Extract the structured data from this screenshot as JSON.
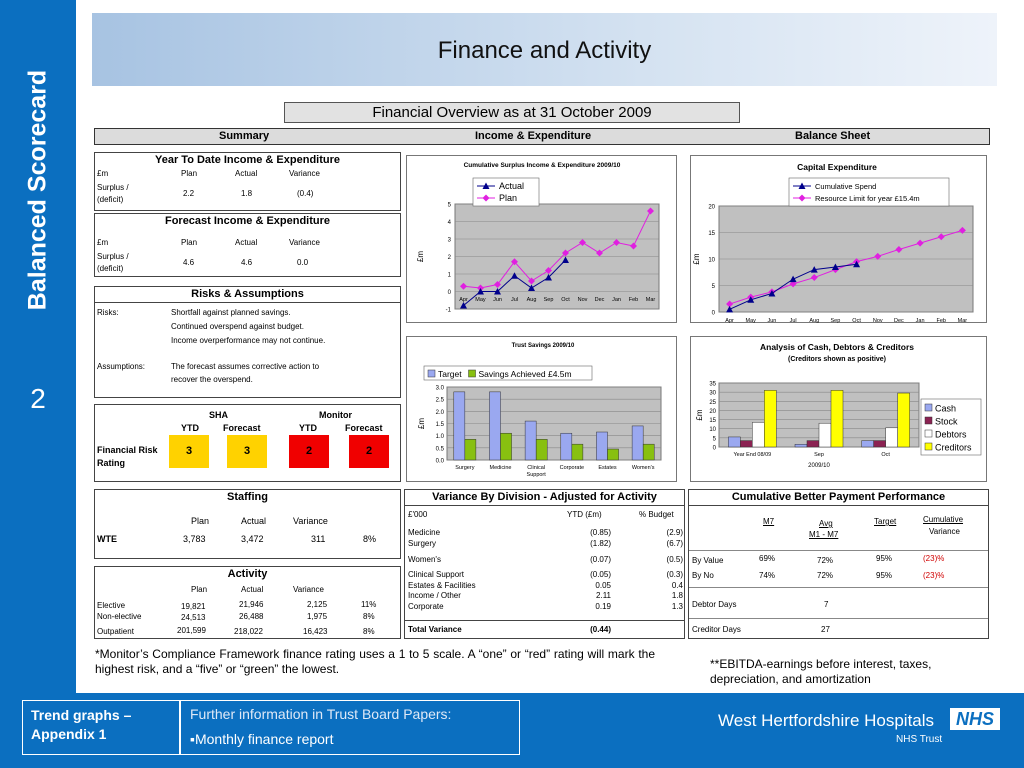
{
  "sidebar": {
    "title": "Balanced Scorecard",
    "slide_number": "2"
  },
  "header": {
    "title": "Finance and Activity",
    "subtitle": "Financial Overview as at 31 October 2009"
  },
  "sections": {
    "summary": "Summary",
    "income": "Income & Expenditure",
    "balance": "Balance Sheet"
  },
  "ytd": {
    "title": "Year To Date Income & Expenditure",
    "unit": "£m",
    "col_plan": "Plan",
    "col_actual": "Actual",
    "col_variance": "Variance",
    "row_label_1": "Surplus /",
    "row_label_2": "(deficit)",
    "plan": "2.2",
    "actual": "1.8",
    "variance": "(0.4)"
  },
  "forecast": {
    "title": "Forecast Income & Expenditure",
    "unit": "£m",
    "col_plan": "Plan",
    "col_actual": "Actual",
    "col_variance": "Variance",
    "row_label_1": "Surplus /",
    "row_label_2": "(deficit)",
    "plan": "4.6",
    "actual": "4.6",
    "variance": "0.0"
  },
  "risks": {
    "title": "Risks & Assumptions",
    "risks_label": "Risks:",
    "risk_lines": [
      "Shortfall against planned savings.",
      "Continued overspend against budget.",
      "Income overperformance may not continue."
    ],
    "assumptions_label": "Assumptions:",
    "assumption_lines": [
      "The forecast assumes corrective action to",
      "recover the overspend."
    ]
  },
  "rating": {
    "sha": "SHA",
    "monitor": "Monitor",
    "ytd": "YTD",
    "forecast": "Forecast",
    "ytd2": "YTD",
    "forecast2": "Forecast",
    "label_1": "Financial Risk",
    "label_2": "Rating",
    "sha_ytd": "3",
    "sha_forecast": "3",
    "monitor_ytd": "2",
    "monitor_forecast": "2",
    "color_amber": "#ffd200",
    "color_red": "#f00000"
  },
  "staffing": {
    "title": "Staffing",
    "col_plan": "Plan",
    "col_actual": "Actual",
    "col_variance": "Variance",
    "row": {
      "label": "WTE",
      "plan": "3,783",
      "actual": "3,472",
      "variance": "311",
      "pct": "8%"
    }
  },
  "activity": {
    "title": "Activity",
    "col_plan": "Plan",
    "col_actual": "Actual",
    "col_variance": "Variance",
    "rows": [
      {
        "label": "Elective",
        "plan": "19,821",
        "actual": "21,946",
        "variance": "2,125",
        "pct": "11%"
      },
      {
        "label": "Non-elective",
        "plan": "24,513",
        "actual": "26,488",
        "variance": "1,975",
        "pct": "8%"
      },
      {
        "label": "Outpatient",
        "plan": "201,599",
        "actual": "218,022",
        "variance": "16,423",
        "pct": "8%"
      }
    ]
  },
  "variance_division": {
    "title": "Variance By Division - Adjusted for Activity",
    "unit": "£'000",
    "col_ytd": "YTD (£m)",
    "col_budget": "% Budget",
    "rows": [
      {
        "label": "Medicine",
        "ytd": "(0.85)",
        "budget": "(2.9)"
      },
      {
        "label": "Surgery",
        "ytd": "(1.82)",
        "budget": "(6.7)"
      },
      {
        "label": "Women's",
        "ytd": "(0.07)",
        "budget": "(0.5)"
      },
      {
        "label": "Clinical Support",
        "ytd": "(0.05)",
        "budget": "(0.3)"
      },
      {
        "label": "Estates & Facilities",
        "ytd": "0.05",
        "budget": "0.4"
      },
      {
        "label": "Income / Other",
        "ytd": "2.11",
        "budget": "1.8"
      },
      {
        "label": "Corporate",
        "ytd": "0.19",
        "budget": "1.3"
      }
    ],
    "total_label": "Total  Variance",
    "total_ytd": "(0.44)"
  },
  "bpp": {
    "title": "Cumulative Better Payment Performance",
    "col_m7": "M7",
    "col_avg_1": "Avg",
    "col_avg_2": "M1 - M7",
    "col_target": "Target",
    "col_cum_1": "Cumulative",
    "col_cum_2": "Variance",
    "rows": [
      {
        "label": "By Value",
        "m7": "69%",
        "avg": "72%",
        "target": "95%",
        "variance": "(23)%"
      },
      {
        "label": "By No",
        "m7": "74%",
        "avg": "72%",
        "target": "95%",
        "variance": "(23)%"
      }
    ],
    "debtor_label": "Debtor Days",
    "debtor_value": "7",
    "creditor_label": "Creditor Days",
    "creditor_value": "27",
    "variance_color": "#d00000"
  },
  "notes": {
    "monitor": "*Monitor’s Compliance Framework finance rating uses a 1 to 5 scale. A “one” or “red” rating will mark the highest risk, and a “five” or “green” the lowest.",
    "ebitda": "**EBITDA-earnings before interest, taxes, depreciation, and amortization"
  },
  "footer": {
    "trend_1": "Trend graphs –",
    "trend_2": "Appendix 1",
    "info": "Further information in Trust Board Papers:",
    "info_item": "▪Monthly finance report",
    "org": "West Hertfordshire Hospitals",
    "logo": "NHS",
    "org_sub": "NHS Trust"
  },
  "chart_data": [
    {
      "id": "surplus",
      "type": "line",
      "title": "Cumulative Surplus Income & Expenditure 2009/10",
      "ylabel": "£m",
      "categories": [
        "Apr",
        "May",
        "Jun",
        "Jul",
        "Aug",
        "Sep",
        "Oct",
        "Nov",
        "Dec",
        "Jan",
        "Feb",
        "Mar"
      ],
      "ylim": [
        -1,
        5
      ],
      "yticks": [
        "-1",
        "0",
        "1",
        "2",
        "3",
        "4",
        "5"
      ],
      "series": [
        {
          "name": "Actual",
          "color": "#00008b",
          "marker": "triangle",
          "values": [
            -0.8,
            0.0,
            0.0,
            0.9,
            0.2,
            0.8,
            1.8,
            null,
            null,
            null,
            null,
            null
          ]
        },
        {
          "name": "Plan",
          "color": "#e020e0",
          "marker": "diamond",
          "values": [
            0.3,
            0.2,
            0.4,
            1.7,
            0.6,
            1.2,
            2.2,
            2.8,
            2.2,
            2.8,
            2.6,
            4.6
          ]
        }
      ],
      "legend": "top-left"
    },
    {
      "id": "capex",
      "type": "line",
      "title": "Capital Expenditure",
      "ylabel": "£m",
      "categories": [
        "Apr",
        "May",
        "Jun",
        "Jul",
        "Aug",
        "Sep",
        "Oct",
        "Nov",
        "Dec",
        "Jan",
        "Feb",
        "Mar"
      ],
      "ylim": [
        0,
        20
      ],
      "yticks": [
        "0",
        "5",
        "10",
        "15",
        "20"
      ],
      "series": [
        {
          "name": "Cumulative Spend",
          "color": "#00008b",
          "marker": "triangle",
          "values": [
            0.5,
            2.3,
            3.5,
            6.2,
            8.0,
            8.5,
            9.0,
            null,
            null,
            null,
            null,
            null
          ]
        },
        {
          "name": "Resource Limit for year £15.4m",
          "color": "#e020e0",
          "marker": "diamond",
          "values": [
            1.5,
            2.8,
            3.8,
            5.3,
            6.5,
            8.0,
            9.5,
            10.5,
            11.8,
            13.0,
            14.2,
            15.4
          ]
        }
      ],
      "legend": "top"
    },
    {
      "id": "savings",
      "type": "bar",
      "title": "Trust Savings 2009/10",
      "ylabel": "£m",
      "categories": [
        "Surgery",
        "Medicine",
        "Clinical Support",
        "Corporate",
        "Estates",
        "Women's"
      ],
      "ylim": [
        0,
        3
      ],
      "yticks": [
        "0.0",
        "0.5",
        "1.0",
        "1.5",
        "2.0",
        "2.5",
        "3.0"
      ],
      "series": [
        {
          "name": "Target",
          "color": "#9aa8f0",
          "values": [
            2.8,
            2.8,
            1.6,
            1.1,
            1.15,
            1.4
          ]
        },
        {
          "name": "Savings Achieved £4.5m",
          "color": "#88c010",
          "values": [
            0.85,
            1.1,
            0.85,
            0.65,
            0.45,
            0.65
          ]
        }
      ],
      "legend": "top"
    },
    {
      "id": "cash",
      "type": "bar",
      "title": "Analysis of Cash, Debtors & Creditors",
      "subtitle": "(Creditors shown as positive)",
      "ylabel": "£m",
      "xlabel": "2009/10",
      "categories": [
        "Year End 08/09",
        "Sep",
        "Oct"
      ],
      "ylim": [
        0,
        35
      ],
      "yticks": [
        "0",
        "5",
        "10",
        "15",
        "20",
        "25",
        "30",
        "35"
      ],
      "series": [
        {
          "name": "Cash",
          "color": "#9aa8f0",
          "values": [
            5.5,
            1.5,
            3.5
          ]
        },
        {
          "name": "Stock",
          "color": "#8b2252",
          "values": [
            3.5,
            3.5,
            3.5
          ]
        },
        {
          "name": "Debtors",
          "color": "#ffffff",
          "values": [
            13.5,
            13.0,
            10.5
          ]
        },
        {
          "name": "Creditors",
          "color": "#ffff00",
          "values": [
            31,
            31,
            29.5
          ]
        }
      ],
      "legend": "right"
    }
  ]
}
